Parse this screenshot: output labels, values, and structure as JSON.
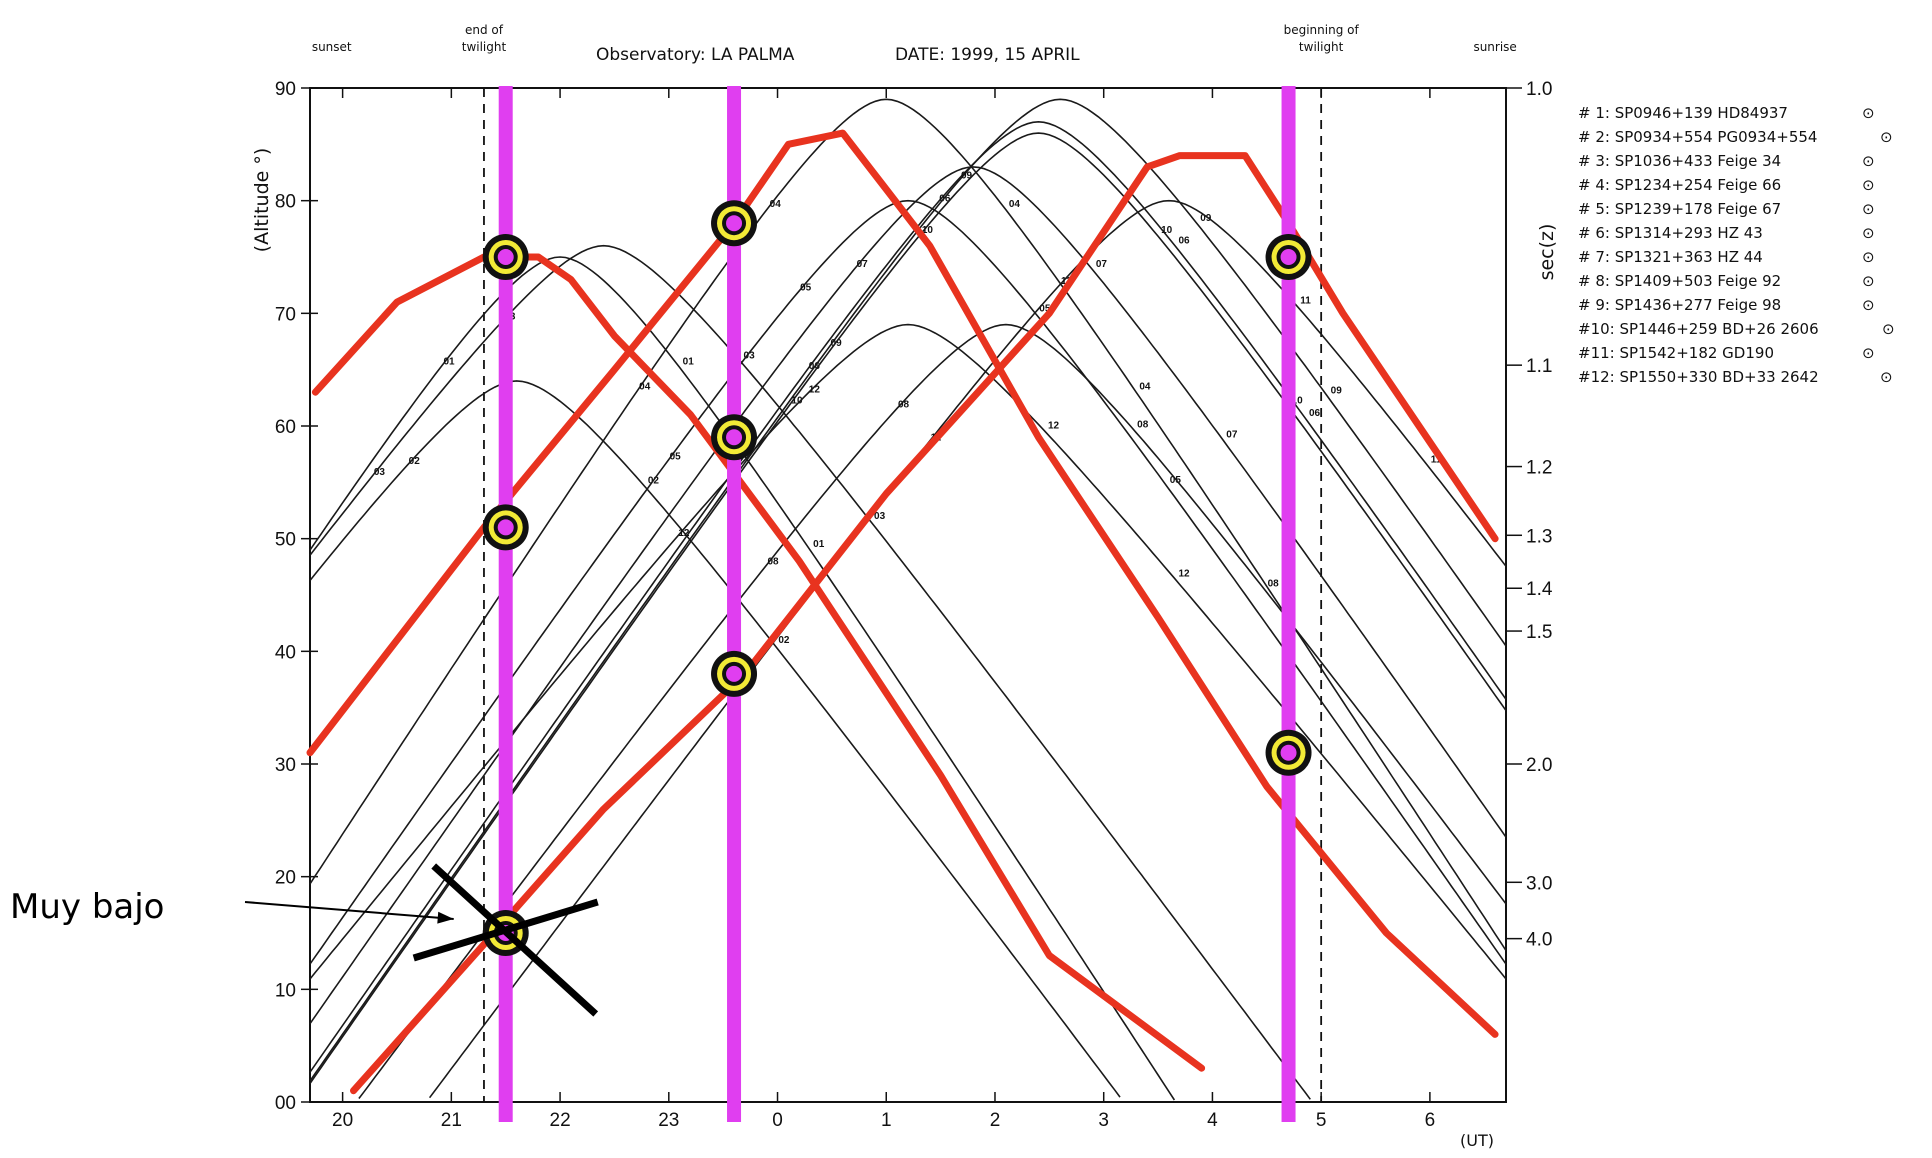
{
  "chart_data": {
    "type": "line",
    "title": "Observatory: LA PALMA",
    "date": "DATE: 1999, 15 APRIL",
    "ylabel": "(Altitude °)",
    "y2label": "sec(z)",
    "xunit": "(UT)",
    "ylim": [
      0,
      90
    ],
    "xlim": [
      19.7,
      30.7
    ],
    "xticks": [
      20,
      21,
      22,
      23,
      24,
      25,
      26,
      27,
      28,
      29,
      30
    ],
    "xtick_labels": [
      "20",
      "21",
      "22",
      "23",
      "0",
      "1",
      "2",
      "3",
      "4",
      "5",
      "6"
    ],
    "yticks": [
      0,
      10,
      20,
      30,
      40,
      50,
      60,
      70,
      80,
      90
    ],
    "ytick_labels": [
      "00",
      "10",
      "20",
      "30",
      "40",
      "50",
      "60",
      "70",
      "80",
      "90"
    ],
    "secz_ticks": [
      {
        "label": "1.0",
        "alt": 90
      },
      {
        "label": "1.1",
        "alt": 65.4
      },
      {
        "label": "1.2",
        "alt": 56.4
      },
      {
        "label": "1.3",
        "alt": 50.3
      },
      {
        "label": "1.4",
        "alt": 45.6
      },
      {
        "label": "1.5",
        "alt": 41.8
      },
      {
        "label": "2.0",
        "alt": 30.0
      },
      {
        "label": "3.0",
        "alt": 19.5
      },
      {
        "label": "4.0",
        "alt": 14.5
      }
    ],
    "markers": [
      {
        "label": "sunset",
        "x": 19.9
      },
      {
        "label": "end of",
        "label2": "twilight",
        "x": 21.3,
        "dashed": true
      },
      {
        "label": "beginning of",
        "label2": "twilight",
        "x": 29.0,
        "dashed": true
      },
      {
        "label": "sunrise",
        "x": 30.6
      }
    ],
    "legend": [
      "# 1: SP0946+139 HD84937",
      "# 2: SP0934+554 PG0934+554",
      "# 3: SP1036+433 Feige 34",
      "# 4: SP1234+254 Feige 66",
      "# 5: SP1239+178 Feige 67",
      "# 6: SP1314+293 HZ 43",
      "# 7: SP1321+363 HZ 44",
      "# 8: SP1409+503 Feige 92",
      "# 9: SP1436+277 Feige 98",
      "#10: SP1446+259 BD+26 2606",
      "#11: SP1542+182 GD190",
      "#12: SP1550+330 BD+33 2642"
    ],
    "legend_symbol": "⊙",
    "series": [
      {
        "id": "01",
        "transit": 22.0,
        "peak": 75,
        "slope": 15
      },
      {
        "id": "02",
        "transit": 21.6,
        "peak": 64,
        "slope": 13
      },
      {
        "id": "03",
        "transit": 22.4,
        "peak": 76,
        "slope": 13
      },
      {
        "id": "04",
        "transit": 25.0,
        "peak": 89,
        "slope": 15
      },
      {
        "id": "05",
        "transit": 25.2,
        "peak": 80,
        "slope": 14
      },
      {
        "id": "06",
        "transit": 26.4,
        "peak": 87,
        "slope": 14
      },
      {
        "id": "07",
        "transit": 25.8,
        "peak": 83,
        "slope": 14
      },
      {
        "id": "08",
        "transit": 26.1,
        "peak": 69,
        "slope": 13
      },
      {
        "id": "09",
        "transit": 26.6,
        "peak": 89,
        "slope": 14
      },
      {
        "id": "10",
        "transit": 26.4,
        "peak": 86,
        "slope": 14
      },
      {
        "id": "11",
        "transit": 27.6,
        "peak": 80,
        "slope": 13
      },
      {
        "id": "12",
        "transit": 25.2,
        "peak": 69,
        "slope": 12
      }
    ],
    "highlight_tracks": [
      {
        "points": [
          [
            19.75,
            63
          ],
          [
            20.5,
            71
          ],
          [
            21.3,
            75
          ],
          [
            21.8,
            75
          ],
          [
            22.1,
            73
          ],
          [
            22.5,
            68
          ],
          [
            23.2,
            61
          ],
          [
            24.2,
            48
          ],
          [
            25.5,
            29
          ],
          [
            26.5,
            13
          ],
          [
            27.9,
            3
          ]
        ]
      },
      {
        "points": [
          [
            19.7,
            31
          ],
          [
            21.3,
            51
          ],
          [
            22.5,
            65
          ],
          [
            23.6,
            78
          ],
          [
            24.1,
            85
          ],
          [
            24.6,
            86
          ],
          [
            25.0,
            81
          ],
          [
            25.4,
            76
          ],
          [
            26.4,
            59
          ],
          [
            27.5,
            43
          ],
          [
            28.5,
            28
          ],
          [
            29.6,
            15
          ],
          [
            30.6,
            6
          ]
        ]
      },
      {
        "points": [
          [
            20.1,
            1
          ],
          [
            21.3,
            14
          ],
          [
            22.4,
            26
          ],
          [
            23.7,
            38
          ],
          [
            25.0,
            54
          ],
          [
            26.5,
            70
          ],
          [
            27.4,
            83
          ],
          [
            27.7,
            84
          ],
          [
            28.3,
            84
          ],
          [
            28.7,
            78
          ],
          [
            29.2,
            70
          ],
          [
            29.9,
            60
          ],
          [
            30.6,
            50
          ]
        ]
      }
    ],
    "observation_times": [
      21.5,
      23.6,
      28.7
    ],
    "observation_points": [
      {
        "x": 21.5,
        "y": 75,
        "rejected": false
      },
      {
        "x": 21.5,
        "y": 51,
        "rejected": false
      },
      {
        "x": 21.5,
        "y": 15,
        "rejected": true
      },
      {
        "x": 23.6,
        "y": 78,
        "rejected": false
      },
      {
        "x": 23.6,
        "y": 59,
        "rejected": false
      },
      {
        "x": 23.6,
        "y": 38,
        "rejected": false
      },
      {
        "x": 28.7,
        "y": 75,
        "rejected": false
      },
      {
        "x": 28.7,
        "y": 31,
        "rejected": false
      }
    ],
    "annotation": "Muy bajo"
  }
}
